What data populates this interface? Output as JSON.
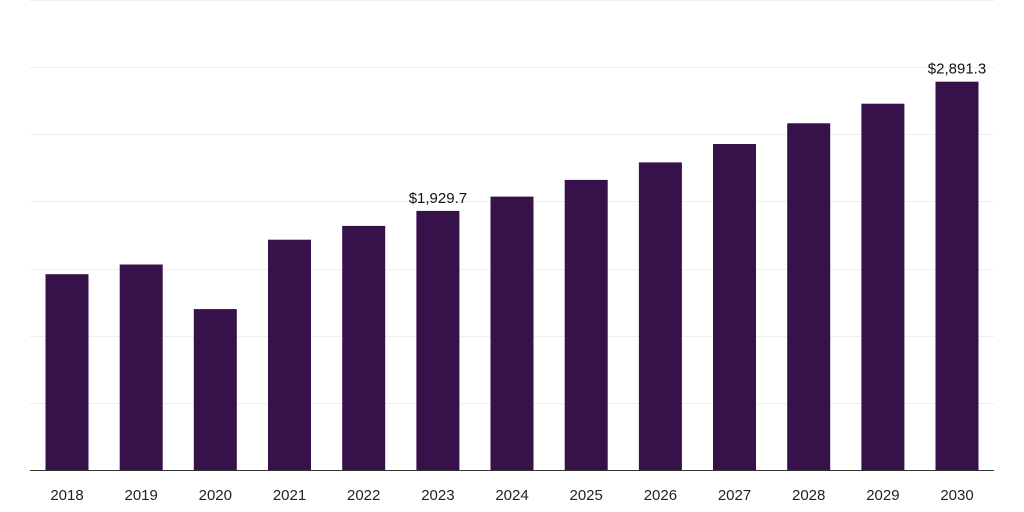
{
  "chart_data": {
    "type": "bar",
    "categories": [
      "2018",
      "2019",
      "2020",
      "2021",
      "2022",
      "2023",
      "2024",
      "2025",
      "2026",
      "2027",
      "2028",
      "2029",
      "2030"
    ],
    "values": [
      1458,
      1530,
      1198,
      1715,
      1818,
      1929.7,
      2036,
      2160,
      2291,
      2428,
      2582,
      2728,
      2891.3
    ],
    "data_labels": [
      {
        "index": 5,
        "text": "$1,929.7"
      },
      {
        "index": 12,
        "text": "$2,891.3"
      }
    ],
    "title": "",
    "xlabel": "",
    "ylabel": "",
    "ylim": [
      0,
      3500
    ],
    "grid": true,
    "legend": "none",
    "colors": {
      "bar": "#37114a",
      "gridline": "#eeeeee",
      "axis": "#333333"
    }
  }
}
